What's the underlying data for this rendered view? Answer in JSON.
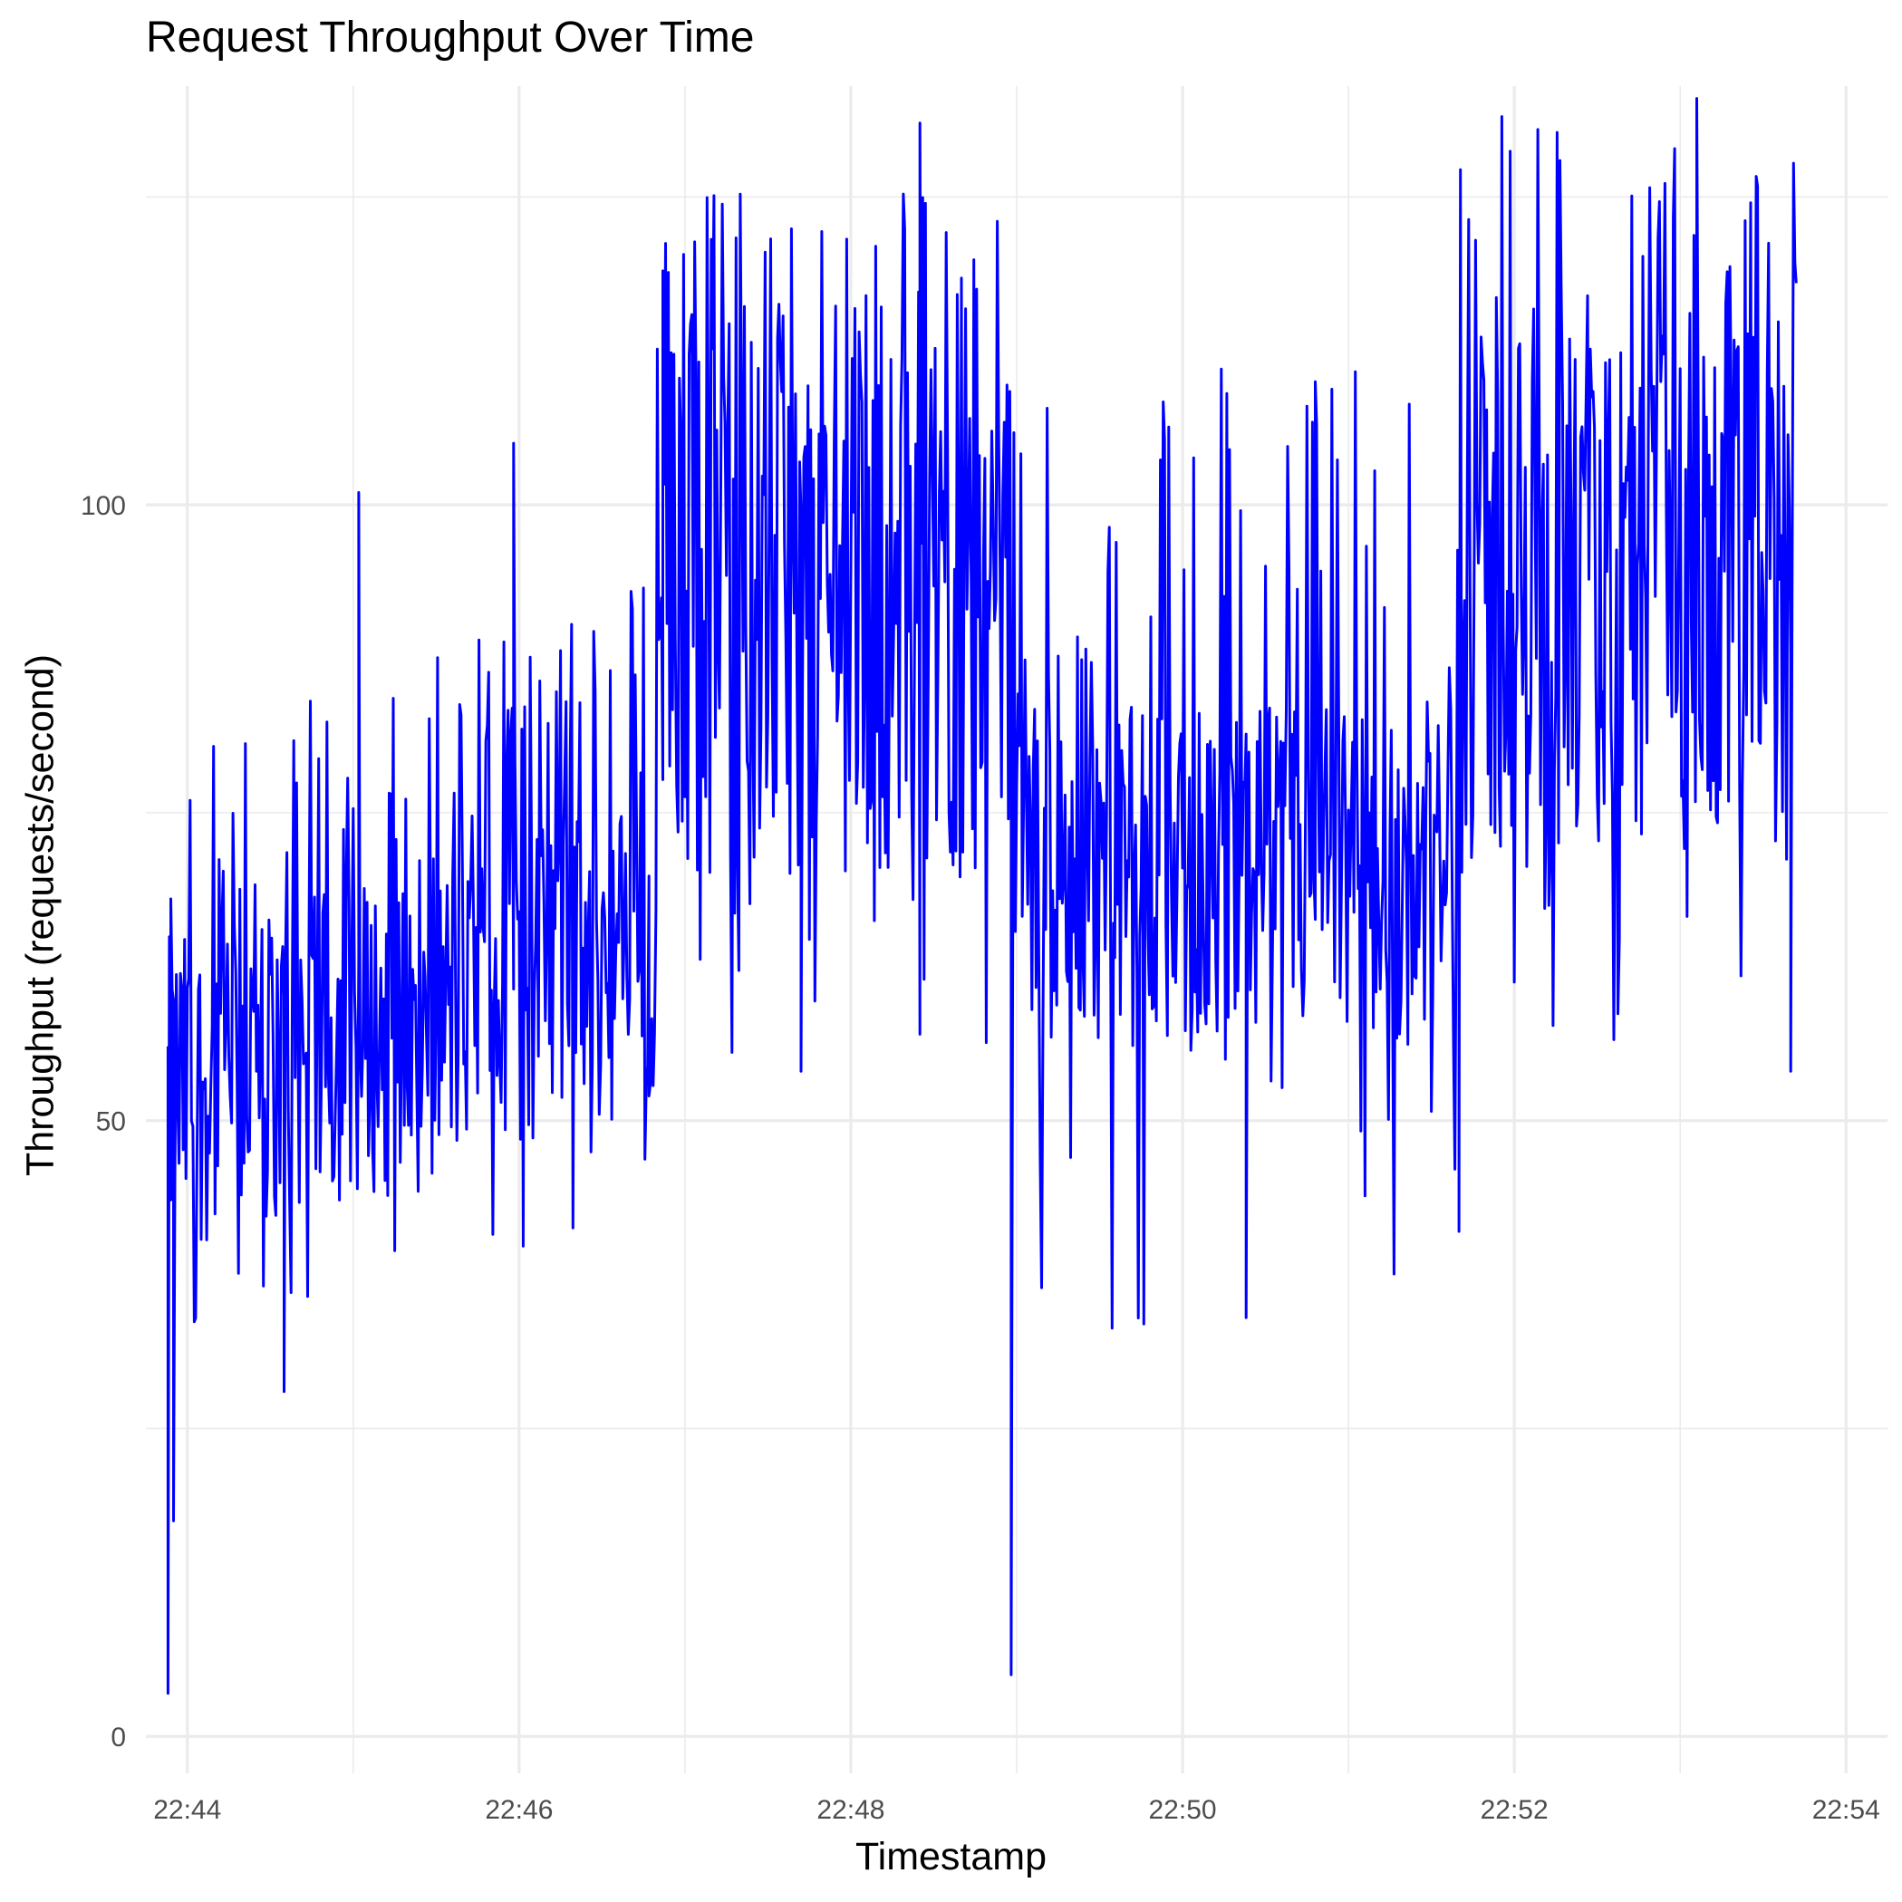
{
  "chart_data": {
    "type": "line",
    "title": "Request Throughput Over Time",
    "xlabel": "Timestamp",
    "ylabel": "Throughput (requests/second)",
    "x_tick_labels": [
      "22:44",
      "22:46",
      "22:48",
      "22:50",
      "22:52",
      "22:54"
    ],
    "y_tick_labels": [
      "0",
      "50",
      "100"
    ],
    "y_ticks": [
      0,
      50,
      100
    ],
    "x_range": [
      "22:43:45",
      "22:54:15"
    ],
    "ylim": [
      -3,
      134
    ],
    "grid": true,
    "legend": "none",
    "line_color": "#0000ff",
    "sample_interval_seconds": 0.5,
    "segments": [
      {
        "start": "22:43:53",
        "end": "22:46:50",
        "level_start": 52,
        "level_end": 64,
        "spread": 13,
        "peak_start": 80,
        "peak_end": 95
      },
      {
        "start": "22:46:50",
        "end": "22:48:58",
        "level": 92,
        "spread": 22,
        "min": 55,
        "max": 126
      },
      {
        "start": "22:48:58",
        "end": "22:51:40",
        "level": 70,
        "spread": 14,
        "min": 32,
        "max": 112
      },
      {
        "start": "22:51:40",
        "end": "22:53:42",
        "level": 92,
        "spread": 22,
        "min": 53,
        "max": 132
      }
    ],
    "key_points": [
      {
        "x": "22:43:53",
        "y": 3.5
      },
      {
        "x": "22:43:54",
        "y": 68
      },
      {
        "x": "22:43:55",
        "y": 17.5
      },
      {
        "x": "22:44:35",
        "y": 28
      },
      {
        "x": "22:45:02",
        "y": 101
      },
      {
        "x": "22:45:58",
        "y": 105
      },
      {
        "x": "22:46:47",
        "y": 52
      },
      {
        "x": "22:46:52",
        "y": 119
      },
      {
        "x": "22:47:42",
        "y": 54
      },
      {
        "x": "22:48:25",
        "y": 131
      },
      {
        "x": "22:48:58",
        "y": 5
      },
      {
        "x": "22:50:23",
        "y": 34
      },
      {
        "x": "22:50:48",
        "y": 110
      },
      {
        "x": "22:51:40",
        "y": 41
      },
      {
        "x": "22:53:06",
        "y": 133
      },
      {
        "x": "22:53:40",
        "y": 54
      },
      {
        "x": "22:53:42",
        "y": 118
      }
    ]
  }
}
